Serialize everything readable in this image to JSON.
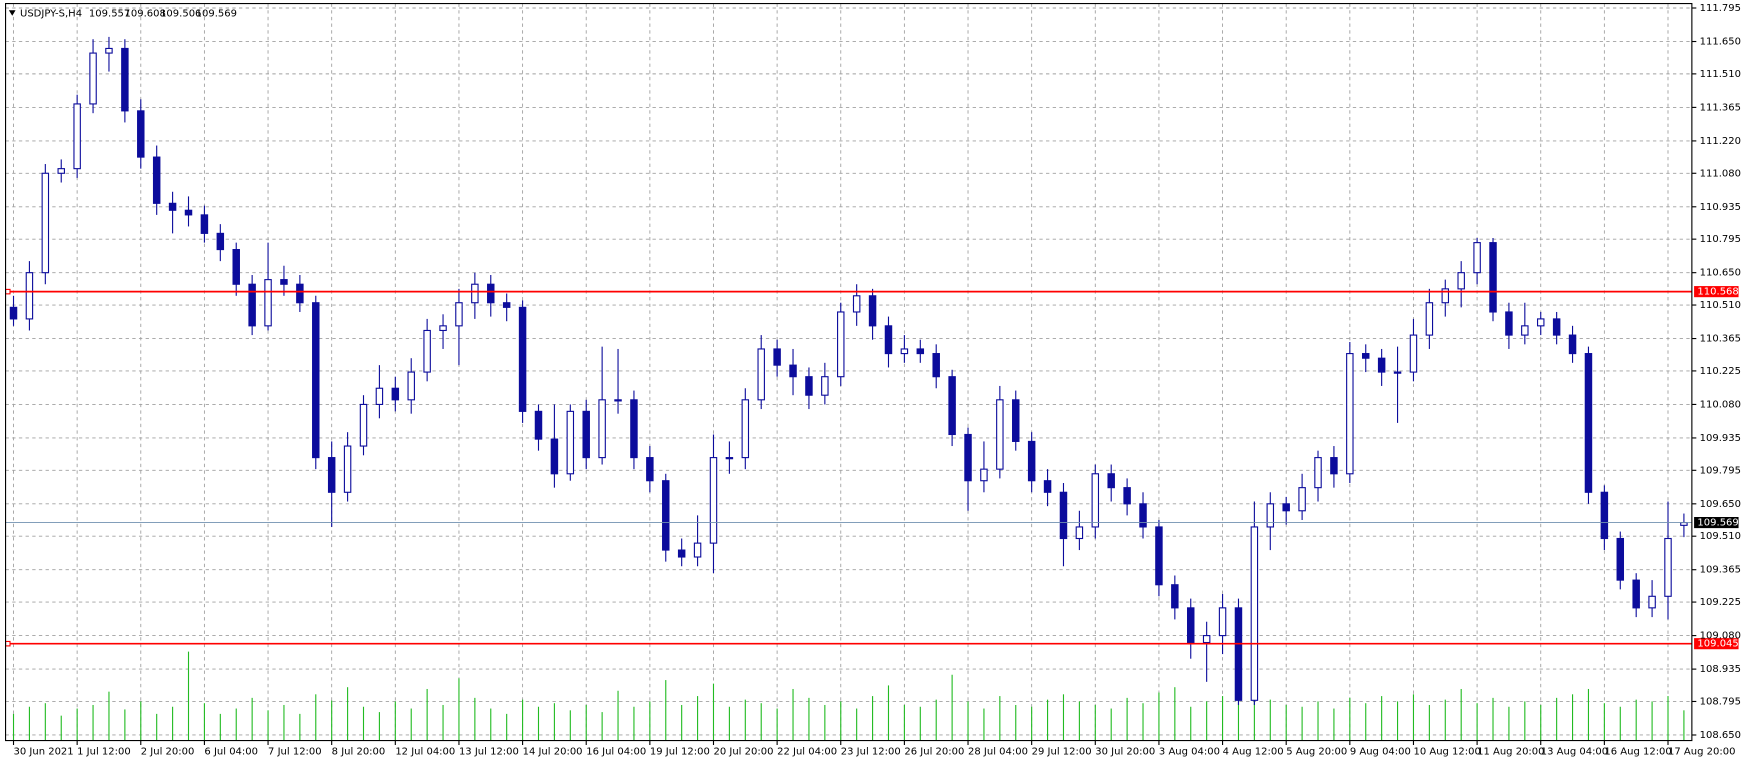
{
  "chart_data": {
    "type": "candlestick",
    "symbol": "USDJPY-S,H4",
    "categories": [
      "30 Jun 2021",
      null,
      null,
      null,
      "1 Jul 12:00",
      null,
      null,
      null,
      "2 Jul 20:00",
      null,
      null,
      null,
      "6 Jul 04:00",
      null,
      null,
      null,
      "7 Jul 12:00",
      null,
      null,
      null,
      "8 Jul 20:00",
      null,
      null,
      null,
      "12 Jul 04:00",
      null,
      null,
      null,
      "13 Jul 12:00",
      null,
      null,
      null,
      "14 Jul 20:00",
      null,
      null,
      null,
      "16 Jul 04:00",
      null,
      null,
      null,
      "19 Jul 12:00",
      null,
      null,
      null,
      "20 Jul 20:00",
      null,
      null,
      null,
      "22 Jul 04:00",
      null,
      null,
      null,
      "23 Jul 12:00",
      null,
      null,
      null,
      "26 Jul 20:00",
      null,
      null,
      null,
      "28 Jul 04:00",
      null,
      null,
      null,
      "29 Jul 12:00",
      null,
      null,
      null,
      "30 Jul 20:00",
      null,
      null,
      null,
      "3 Aug 04:00",
      null,
      null,
      null,
      "4 Aug 12:00",
      null,
      null,
      null,
      "5 Aug 20:00",
      null,
      null,
      null,
      "9 Aug 04:00",
      null,
      null,
      null,
      "10 Aug 12:00",
      null,
      null,
      null,
      "11 Aug 20:00",
      null,
      null,
      null,
      "13 Aug 04:00",
      null,
      null,
      null,
      "16 Aug 12:00",
      null,
      null,
      null,
      "17 Aug 20:00",
      null
    ],
    "open": [
      110.5,
      110.45,
      110.65,
      111.08,
      111.1,
      111.38,
      111.6,
      111.62,
      111.35,
      111.15,
      110.95,
      110.92,
      110.9,
      110.82,
      110.75,
      110.6,
      110.42,
      110.62,
      110.6,
      110.52,
      109.85,
      109.7,
      109.9,
      110.08,
      110.15,
      110.1,
      110.22,
      110.4,
      110.42,
      110.52,
      110.6,
      110.52,
      110.5,
      110.05,
      109.93,
      109.78,
      110.05,
      109.85,
      110.1,
      110.1,
      109.85,
      109.75,
      109.45,
      109.42,
      109.48,
      109.85,
      109.85,
      110.1,
      110.32,
      110.25,
      110.2,
      110.12,
      110.2,
      110.48,
      110.55,
      110.42,
      110.3,
      110.32,
      110.3,
      110.2,
      109.95,
      109.75,
      109.8,
      110.1,
      109.92,
      109.75,
      109.7,
      109.5,
      109.55,
      109.78,
      109.72,
      109.65,
      109.55,
      109.3,
      109.2,
      109.05,
      109.08,
      109.2,
      108.8,
      109.55,
      109.65,
      109.62,
      109.72,
      109.85,
      109.78,
      110.3,
      110.28,
      110.22,
      110.22,
      110.38,
      110.52,
      110.58,
      110.65,
      110.78,
      110.48,
      110.38,
      110.42,
      110.45,
      110.38,
      110.3,
      109.7,
      109.5,
      109.32,
      109.2,
      109.25,
      109.557
    ],
    "high": [
      110.55,
      110.7,
      111.12,
      111.14,
      111.42,
      111.66,
      111.67,
      111.66,
      111.4,
      111.2,
      111.0,
      110.98,
      110.94,
      110.86,
      110.78,
      110.64,
      110.78,
      110.68,
      110.64,
      110.55,
      109.92,
      109.96,
      110.12,
      110.25,
      110.2,
      110.28,
      110.45,
      110.47,
      110.58,
      110.65,
      110.64,
      110.56,
      110.53,
      110.08,
      110.08,
      110.08,
      110.1,
      110.33,
      110.32,
      110.14,
      109.9,
      109.78,
      109.5,
      109.6,
      109.95,
      109.92,
      110.15,
      110.38,
      110.36,
      110.32,
      110.24,
      110.26,
      110.52,
      110.6,
      110.58,
      110.46,
      110.38,
      110.36,
      110.34,
      110.23,
      109.98,
      109.92,
      110.16,
      110.14,
      109.96,
      109.8,
      109.74,
      109.62,
      109.82,
      109.82,
      109.76,
      109.7,
      109.58,
      109.34,
      109.24,
      109.14,
      109.26,
      109.24,
      109.66,
      109.7,
      109.68,
      109.78,
      109.88,
      109.9,
      110.35,
      110.34,
      110.32,
      110.33,
      110.45,
      110.58,
      110.62,
      110.7,
      110.8,
      110.8,
      110.52,
      110.52,
      110.48,
      110.48,
      110.42,
      110.33,
      109.73,
      109.53,
      109.35,
      109.32,
      109.66,
      109.608
    ],
    "low": [
      110.42,
      110.4,
      110.6,
      111.04,
      111.06,
      111.34,
      111.52,
      111.3,
      111.1,
      110.9,
      110.82,
      110.85,
      110.78,
      110.7,
      110.55,
      110.38,
      110.4,
      110.55,
      110.48,
      109.8,
      109.55,
      109.66,
      109.86,
      110.02,
      110.05,
      110.04,
      110.18,
      110.32,
      110.25,
      110.45,
      110.46,
      110.44,
      110.0,
      109.88,
      109.72,
      109.75,
      109.8,
      109.82,
      110.04,
      109.8,
      109.7,
      109.4,
      109.38,
      109.38,
      109.35,
      109.78,
      109.8,
      110.06,
      110.2,
      110.12,
      110.06,
      110.08,
      110.16,
      110.42,
      110.36,
      110.24,
      110.26,
      110.26,
      110.15,
      109.9,
      109.62,
      109.7,
      109.76,
      109.88,
      109.7,
      109.64,
      109.38,
      109.45,
      109.5,
      109.66,
      109.6,
      109.5,
      109.25,
      109.15,
      108.98,
      108.88,
      109.0,
      108.78,
      108.78,
      109.45,
      109.56,
      109.58,
      109.66,
      109.72,
      109.74,
      110.22,
      110.16,
      110.0,
      110.18,
      110.32,
      110.46,
      110.5,
      110.6,
      110.44,
      110.32,
      110.34,
      110.38,
      110.34,
      110.26,
      109.65,
      109.45,
      109.28,
      109.16,
      109.16,
      109.15,
      109.506
    ],
    "close": [
      110.45,
      110.65,
      111.08,
      111.1,
      111.38,
      111.6,
      111.62,
      111.35,
      111.15,
      110.95,
      110.92,
      110.9,
      110.82,
      110.75,
      110.6,
      110.42,
      110.62,
      110.6,
      110.52,
      109.85,
      109.7,
      109.9,
      110.08,
      110.15,
      110.1,
      110.22,
      110.4,
      110.42,
      110.52,
      110.6,
      110.52,
      110.5,
      110.05,
      109.93,
      109.78,
      110.05,
      109.85,
      110.1,
      110.1,
      109.85,
      109.75,
      109.45,
      109.42,
      109.48,
      109.85,
      109.85,
      110.1,
      110.32,
      110.25,
      110.2,
      110.12,
      110.2,
      110.48,
      110.55,
      110.42,
      110.3,
      110.32,
      110.3,
      110.2,
      109.95,
      109.75,
      109.8,
      110.1,
      109.92,
      109.75,
      109.7,
      109.5,
      109.55,
      109.78,
      109.72,
      109.65,
      109.55,
      109.3,
      109.2,
      109.05,
      109.08,
      109.2,
      108.8,
      109.55,
      109.65,
      109.62,
      109.72,
      109.85,
      109.78,
      110.3,
      110.28,
      110.22,
      110.22,
      110.38,
      110.52,
      110.58,
      110.65,
      110.78,
      110.48,
      110.38,
      110.42,
      110.45,
      110.38,
      110.3,
      109.7,
      109.5,
      109.32,
      109.2,
      109.25,
      109.5,
      109.569
    ],
    "volume": [
      30,
      38,
      42,
      28,
      36,
      40,
      55,
      35,
      44,
      30,
      38,
      100,
      42,
      30,
      36,
      48,
      34,
      40,
      30,
      52,
      45,
      60,
      38,
      32,
      44,
      36,
      58,
      40,
      70,
      48,
      36,
      30,
      46,
      38,
      42,
      34,
      40,
      32,
      56,
      38,
      44,
      68,
      40,
      50,
      64,
      38,
      46,
      42,
      36,
      58,
      48,
      40,
      44,
      36,
      50,
      62,
      40,
      38,
      46,
      74,
      44,
      36,
      50,
      40,
      38,
      46,
      52,
      44,
      40,
      36,
      48,
      42,
      54,
      60,
      38,
      44,
      50,
      66,
      72,
      46,
      40,
      38,
      44,
      36,
      48,
      42,
      50,
      44,
      52,
      40,
      46,
      58,
      42,
      48,
      38,
      44,
      40,
      48,
      52,
      58,
      42,
      38,
      46,
      44,
      50,
      34
    ],
    "up_color": "#ffffff",
    "down_color": "#0c0c9c",
    "edge_color": "#0c0c9c",
    "volume_color": "#22bb22",
    "ylim": [
      108.65,
      111.795
    ],
    "yticks": [
      {
        "value": 108.65,
        "label": "108.650"
      },
      108.795,
      108.935,
      {
        "value": 109.08,
        "label": "109.080"
      },
      109.225,
      109.365,
      {
        "value": 109.51,
        "label": "109.510"
      },
      {
        "value": 109.65,
        "label": "109.650"
      },
      109.795,
      109.935,
      {
        "value": 110.08,
        "label": "110.080"
      },
      110.225,
      110.365,
      {
        "value": 110.51,
        "label": "110.510"
      },
      {
        "value": 110.65,
        "label": "110.650"
      },
      110.795,
      110.935,
      {
        "value": 111.08,
        "label": "111.080"
      },
      {
        "value": 111.22,
        "label": "111.220"
      },
      111.365,
      {
        "value": 111.51,
        "label": "111.510"
      },
      {
        "value": 111.65,
        "label": "111.650"
      },
      111.795
    ],
    "hlines": [
      {
        "value": 110.568,
        "color": "#ff0000"
      },
      {
        "value": 109.045,
        "color": "#ff0000"
      }
    ],
    "grid": true
  }
}
